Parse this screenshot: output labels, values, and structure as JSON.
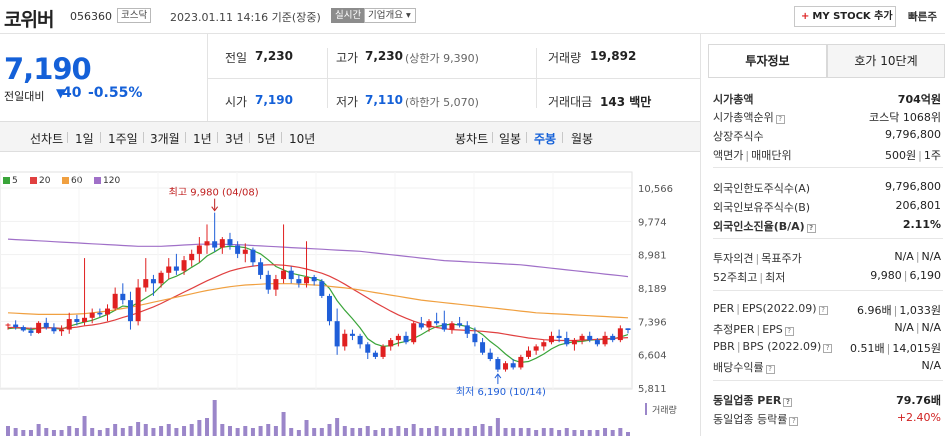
{
  "header": {
    "name": "코위버",
    "code": "056360",
    "market": "코스닥",
    "date": "2023.01.11 14:16 기준(장중)",
    "live_badge": "실시간",
    "company_info_label": "기업개요 ▾",
    "mystock_plus": "+",
    "mystock_label": "MY STOCK 추가",
    "quick_label": "빠른주"
  },
  "price": {
    "current": "7,190",
    "change_label": "전일대비",
    "change_arrow": "▼",
    "change_value": "40",
    "change_percent": "-0.55%"
  },
  "quote": {
    "prev_label": "전일",
    "prev_value": "7,230",
    "high_label": "고가",
    "high_value": "7,230",
    "upper_limit": "(상한가 9,390)",
    "volume_label": "거래량",
    "volume_value": "19,892",
    "open_label": "시가",
    "open_value": "7,190",
    "low_label": "저가",
    "low_value": "7,110",
    "lower_limit": "(하한가 5,070)",
    "amount_label": "거래대금",
    "amount_value": "143 백만"
  },
  "periods": {
    "line_label": "선차트",
    "line_items": [
      "1일",
      "1주일",
      "3개월",
      "1년",
      "3년",
      "5년",
      "10년"
    ],
    "candle_label": "봉차트",
    "candle_items": [
      "일봉",
      "주봉",
      "월봉"
    ],
    "active_candle": "주봉"
  },
  "chart_data": {
    "type": "candlestick",
    "period": "weekly",
    "ylim": [
      5811,
      10566
    ],
    "y_ticks": [
      "10,566",
      "9,774",
      "8,981",
      "8,189",
      "7,396",
      "6,604",
      "5,811"
    ],
    "legend": [
      {
        "name": "5",
        "color": "#3aa53a"
      },
      {
        "name": "20",
        "color": "#e04040"
      },
      {
        "name": "60",
        "color": "#f0a040"
      },
      {
        "name": "120",
        "color": "#a070c8"
      }
    ],
    "annotations": {
      "high_label": "최고 9,980 (04/08)",
      "low_label": "최저 6,190 (10/14)"
    },
    "volume_label": "거래량",
    "candles": [
      [
        7300,
        7350,
        7200,
        7320
      ],
      [
        7320,
        7420,
        7200,
        7260
      ],
      [
        7260,
        7300,
        7150,
        7180
      ],
      [
        7180,
        7250,
        7050,
        7120
      ],
      [
        7120,
        7400,
        7100,
        7360
      ],
      [
        7360,
        7480,
        7200,
        7250
      ],
      [
        7250,
        7350,
        7100,
        7160
      ],
      [
        7160,
        7300,
        7050,
        7200
      ],
      [
        7200,
        7600,
        7100,
        7450
      ],
      [
        7450,
        7550,
        7300,
        7380
      ],
      [
        7380,
        8900,
        7300,
        7480
      ],
      [
        7480,
        7700,
        7350,
        7600
      ],
      [
        7600,
        7700,
        7500,
        7560
      ],
      [
        7560,
        7800,
        7400,
        7700
      ],
      [
        7700,
        8200,
        7650,
        8050
      ],
      [
        8050,
        8300,
        7800,
        7900
      ],
      [
        7900,
        8100,
        7200,
        7400
      ],
      [
        7400,
        8400,
        7300,
        8200
      ],
      [
        8200,
        8900,
        8100,
        8400
      ],
      [
        8400,
        8500,
        8000,
        8300
      ],
      [
        8300,
        8600,
        8200,
        8550
      ],
      [
        8550,
        8900,
        8400,
        8700
      ],
      [
        8700,
        9000,
        8500,
        8600
      ],
      [
        8600,
        8950,
        8500,
        8850
      ],
      [
        8850,
        9100,
        8700,
        9000
      ],
      [
        9000,
        9400,
        8800,
        9200
      ],
      [
        9200,
        9700,
        9000,
        9300
      ],
      [
        9300,
        9980,
        9050,
        9150
      ],
      [
        9150,
        9400,
        9000,
        9350
      ],
      [
        9350,
        9500,
        9100,
        9200
      ],
      [
        9200,
        9300,
        8900,
        9000
      ],
      [
        9000,
        9250,
        8800,
        9100
      ],
      [
        9100,
        9150,
        8700,
        8800
      ],
      [
        8800,
        8900,
        8400,
        8500
      ],
      [
        8500,
        8600,
        8050,
        8150
      ],
      [
        8150,
        8500,
        8000,
        8400
      ],
      [
        8400,
        9700,
        8300,
        8600
      ],
      [
        8600,
        8700,
        8300,
        8400
      ],
      [
        8400,
        8500,
        8200,
        8300
      ],
      [
        8300,
        9300,
        8200,
        8450
      ],
      [
        8450,
        8500,
        8250,
        8350
      ],
      [
        8350,
        8400,
        7950,
        8000
      ],
      [
        8000,
        8050,
        7300,
        7400
      ],
      [
        7400,
        7700,
        6600,
        6800
      ],
      [
        6800,
        7200,
        6700,
        7100
      ],
      [
        7100,
        7200,
        6950,
        7050
      ],
      [
        7050,
        7100,
        6750,
        6850
      ],
      [
        6850,
        6900,
        6500,
        6650
      ],
      [
        6650,
        6700,
        6500,
        6550
      ],
      [
        6550,
        6850,
        6500,
        6800
      ],
      [
        6800,
        7000,
        6700,
        6950
      ],
      [
        6950,
        7100,
        6800,
        7050
      ],
      [
        7050,
        7150,
        6850,
        6900
      ],
      [
        6900,
        7400,
        6850,
        7350
      ],
      [
        7350,
        7500,
        7200,
        7250
      ],
      [
        7250,
        7450,
        7150,
        7400
      ],
      [
        7400,
        7600,
        7300,
        7350
      ],
      [
        7350,
        7650,
        7150,
        7200
      ],
      [
        7200,
        7400,
        7100,
        7350
      ],
      [
        7350,
        7500,
        7250,
        7300
      ],
      [
        7300,
        7400,
        7000,
        7100
      ],
      [
        7100,
        7250,
        6800,
        6900
      ],
      [
        6900,
        7000,
        6600,
        6650
      ],
      [
        6650,
        6750,
        6450,
        6500
      ],
      [
        6500,
        6550,
        6190,
        6250
      ],
      [
        6250,
        6450,
        6200,
        6400
      ],
      [
        6400,
        6500,
        6250,
        6300
      ],
      [
        6300,
        6600,
        6250,
        6550
      ],
      [
        6550,
        6800,
        6500,
        6700
      ],
      [
        6700,
        6850,
        6600,
        6800
      ],
      [
        6800,
        6950,
        6700,
        6900
      ],
      [
        6900,
        7150,
        6850,
        7050
      ],
      [
        7050,
        7200,
        6900,
        7000
      ],
      [
        7000,
        7150,
        6800,
        6850
      ],
      [
        6850,
        7000,
        6700,
        6950
      ],
      [
        6950,
        7100,
        6850,
        7050
      ],
      [
        7050,
        7150,
        6900,
        6950
      ],
      [
        6950,
        7000,
        6800,
        6850
      ],
      [
        6850,
        7150,
        6800,
        7050
      ],
      [
        7050,
        7100,
        6900,
        6950
      ],
      [
        6950,
        7300,
        6900,
        7230
      ],
      [
        7230,
        7230,
        7110,
        7190
      ]
    ],
    "ma": {
      "5": [
        7220,
        7240,
        7230,
        7200,
        7230,
        7260,
        7230,
        7210,
        7280,
        7330,
        7380,
        7420,
        7490,
        7560,
        7660,
        7760,
        7740,
        7840,
        7950,
        8060,
        8240,
        8400,
        8470,
        8560,
        8680,
        8790,
        8950,
        9050,
        9160,
        9180,
        9170,
        9150,
        9080,
        9000,
        8860,
        8700,
        8620,
        8540,
        8500,
        8460,
        8410,
        8360,
        8180,
        7890,
        7660,
        7460,
        7240,
        6980,
        6860,
        6800,
        6820,
        6880,
        6920,
        6990,
        7080,
        7190,
        7270,
        7310,
        7330,
        7310,
        7270,
        7200,
        7080,
        6920,
        6780,
        6620,
        6480,
        6420,
        6440,
        6520,
        6620,
        6740,
        6830,
        6880,
        6910,
        6920,
        6950,
        6960,
        6970,
        6980,
        7020,
        7080
      ],
      "20": [
        7250,
        7250,
        7240,
        7230,
        7230,
        7240,
        7240,
        7230,
        7240,
        7260,
        7290,
        7310,
        7340,
        7380,
        7430,
        7490,
        7540,
        7600,
        7670,
        7740,
        7820,
        7910,
        8000,
        8090,
        8180,
        8270,
        8360,
        8440,
        8520,
        8590,
        8640,
        8680,
        8710,
        8730,
        8740,
        8740,
        8730,
        8710,
        8680,
        8640,
        8590,
        8540,
        8470,
        8380,
        8280,
        8170,
        8060,
        7950,
        7840,
        7740,
        7640,
        7550,
        7470,
        7400,
        7340,
        7290,
        7250,
        7220,
        7200,
        7190,
        7180,
        7170,
        7160,
        7140,
        7120,
        7090,
        7060,
        7030,
        7000,
        6980,
        6960,
        6950,
        6940,
        6940,
        6940,
        6950,
        6960,
        6970,
        6980,
        6990,
        7000,
        7010
      ],
      "60": [
        7600,
        7590,
        7580,
        7570,
        7560,
        7560,
        7560,
        7560,
        7560,
        7570,
        7580,
        7600,
        7620,
        7640,
        7670,
        7700,
        7730,
        7770,
        7810,
        7850,
        7890,
        7930,
        7970,
        8010,
        8050,
        8090,
        8130,
        8160,
        8190,
        8220,
        8240,
        8260,
        8270,
        8280,
        8290,
        8290,
        8290,
        8290,
        8280,
        8270,
        8260,
        8250,
        8230,
        8210,
        8190,
        8170,
        8140,
        8110,
        8080,
        8050,
        8020,
        7990,
        7960,
        7930,
        7900,
        7880,
        7860,
        7840,
        7820,
        7800,
        7780,
        7760,
        7740,
        7720,
        7700,
        7680,
        7660,
        7640,
        7620,
        7600,
        7590,
        7580,
        7570,
        7560,
        7550,
        7540,
        7530,
        7520,
        7510,
        7500,
        7490,
        7480
      ],
      "120": [
        9350,
        9340,
        9330,
        9320,
        9310,
        9300,
        9290,
        9280,
        9270,
        9260,
        9250,
        9240,
        9230,
        9220,
        9210,
        9200,
        9190,
        9180,
        9180,
        9180,
        9180,
        9190,
        9200,
        9210,
        9220,
        9230,
        9230,
        9230,
        9230,
        9220,
        9220,
        9210,
        9200,
        9190,
        9180,
        9170,
        9160,
        9150,
        9140,
        9130,
        9120,
        9110,
        9100,
        9090,
        9080,
        9070,
        9060,
        9040,
        9020,
        9000,
        8980,
        8960,
        8940,
        8920,
        8900,
        8880,
        8860,
        8840,
        8830,
        8820,
        8810,
        8800,
        8790,
        8780,
        8770,
        8760,
        8750,
        8740,
        8720,
        8700,
        8680,
        8660,
        8640,
        8620,
        8600,
        8580,
        8560,
        8540,
        8520,
        8500,
        8480,
        8460
      ]
    },
    "volume": [
      5,
      4,
      3,
      3,
      6,
      4,
      3,
      3,
      5,
      4,
      10,
      4,
      3,
      4,
      6,
      4,
      5,
      7,
      6,
      4,
      5,
      6,
      4,
      5,
      6,
      8,
      9,
      18,
      6,
      5,
      4,
      5,
      4,
      5,
      6,
      5,
      12,
      4,
      3,
      8,
      4,
      4,
      6,
      9,
      5,
      4,
      4,
      5,
      3,
      4,
      4,
      5,
      4,
      6,
      4,
      4,
      5,
      4,
      4,
      4,
      4,
      5,
      6,
      5,
      9,
      4,
      4,
      4,
      4,
      3,
      4,
      4,
      3,
      4,
      3,
      3,
      3,
      3,
      4,
      3,
      4,
      2
    ]
  },
  "right_panel": {
    "tab_invest": "투자정보",
    "tab_hoga": "호가 10단계",
    "rows": [
      {
        "k": "시가총액",
        "v": "704억원",
        "bold": true
      },
      {
        "k": "시가총액순위",
        "v": "코스닥 1068위",
        "info": true
      },
      {
        "k": "상장주식수",
        "v": "9,796,800"
      },
      {
        "k": "액면가",
        "k2": "매매단위",
        "v": "500원",
        "v2": "1주"
      },
      {
        "k": "외국인한도주식수(A)",
        "v": "9,796,800"
      },
      {
        "k": "외국인보유주식수(B)",
        "v": "206,801"
      },
      {
        "k": "외국인소진율(B/A)",
        "v": "2.11%",
        "bold": true,
        "info": true
      },
      {
        "k": "투자의견",
        "k2": "목표주가",
        "v": "N/A",
        "v2": "N/A"
      },
      {
        "k": "52주최고",
        "k2": "최저",
        "v": "9,980",
        "v2": "6,190"
      },
      {
        "k": "PER",
        "k2": "EPS(2022.09)",
        "v": "6.96배",
        "v2": "1,033원",
        "info": true
      },
      {
        "k": "추정PER",
        "k2": "EPS",
        "v": "N/A",
        "v2": "N/A",
        "info": true
      },
      {
        "k": "PBR",
        "k2": "BPS (2022.09)",
        "v": "0.51배",
        "v2": "14,015원",
        "info": true
      },
      {
        "k": "배당수익률",
        "v": "N/A",
        "info": true
      },
      {
        "k": "동일업종 PER",
        "v": "79.76배",
        "bold": true,
        "info": true
      },
      {
        "k": "동일업종 등락률",
        "v": "+2.40%",
        "up": true,
        "info": true
      }
    ]
  }
}
